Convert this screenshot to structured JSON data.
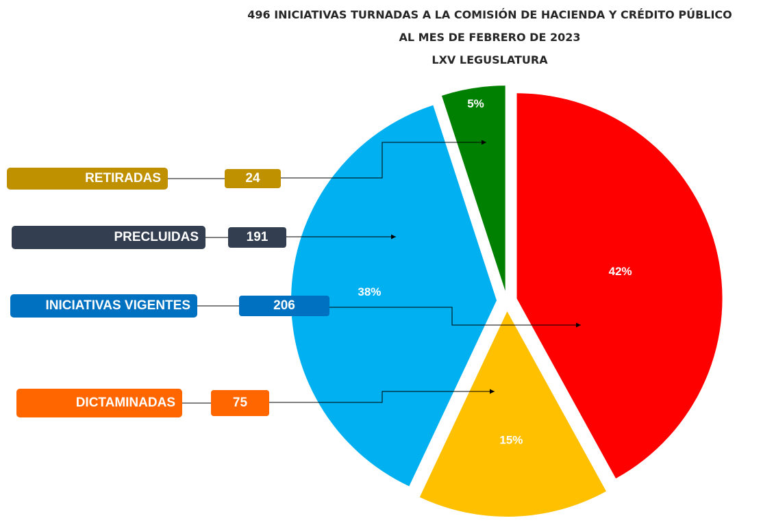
{
  "chart_data": {
    "type": "pie",
    "title": [
      "496 INICIATIVAS TURNADAS A LA COMISIÓN DE HACIENDA Y CRÉDITO PÚBLICO",
      "AL MES DE FEBRERO DE 2023",
      "LXV LEGUSLATURA"
    ],
    "categories": [
      "INICIATIVAS VIGENTES",
      "DICTAMINADAS",
      "PRECLUIDAS",
      "RETIRADAS"
    ],
    "values": [
      42,
      15,
      38,
      5
    ],
    "value_labels": [
      "42%",
      "15%",
      "38%",
      "5%"
    ],
    "counts": [
      206,
      75,
      191,
      24
    ],
    "colors": [
      "#ff0000",
      "#ffc000",
      "#00b0f0",
      "#008000"
    ],
    "label_colors": [
      "#0070c0",
      "#ff6600",
      "#333f50",
      "#bf9000"
    ]
  }
}
